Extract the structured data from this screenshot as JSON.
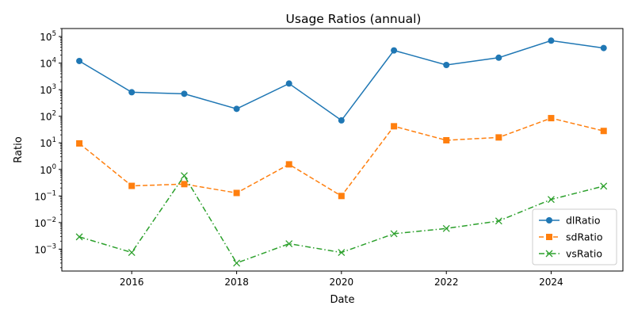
{
  "chart_data": {
    "type": "line",
    "title": "Usage Ratios (annual)",
    "xlabel": "Date",
    "ylabel": "Ratio",
    "y_scale": "log",
    "ylim": [
      0.00015,
      200000
    ],
    "xlim": [
      "2014-09-01",
      "2025-05-15"
    ],
    "x": [
      "2015-01-01",
      "2016-01-01",
      "2017-01-01",
      "2018-01-01",
      "2019-01-01",
      "2020-01-01",
      "2021-01-01",
      "2022-01-01",
      "2023-01-01",
      "2024-01-01",
      "2025-01-01"
    ],
    "x_tick_labels": [
      "2016",
      "2018",
      "2020",
      "2022",
      "2024"
    ],
    "y_tick_labels": [
      {
        "base": "10",
        "exp": "−3"
      },
      {
        "base": "10",
        "exp": "−2"
      },
      {
        "base": "10",
        "exp": "−1"
      },
      {
        "base": "10",
        "exp": "0"
      },
      {
        "base": "10",
        "exp": "1"
      },
      {
        "base": "10",
        "exp": "2"
      },
      {
        "base": "10",
        "exp": "3"
      },
      {
        "base": "10",
        "exp": "4"
      },
      {
        "base": "10",
        "exp": "5"
      }
    ],
    "grid": false,
    "legend_position": "bottom-right",
    "series": [
      {
        "name": "dlRatio",
        "color": "#1f77b4",
        "marker": "circle",
        "line_style": "solid",
        "values": [
          12000,
          800,
          700,
          190,
          1700,
          70,
          30000,
          8500,
          16000,
          70000,
          37000
        ]
      },
      {
        "name": "sdRatio",
        "color": "#ff7f0e",
        "marker": "square",
        "line_style": "dashed",
        "values": [
          9.5,
          0.24,
          0.28,
          0.13,
          1.55,
          0.1,
          42,
          12.5,
          16,
          85,
          28
        ]
      },
      {
        "name": "vsRatio",
        "color": "#2ca02c",
        "marker": "x",
        "line_style": "dashdot",
        "values": [
          0.0029,
          0.00075,
          0.58,
          0.0003,
          0.0016,
          0.00075,
          0.0038,
          0.006,
          0.0115,
          0.074,
          0.235
        ]
      }
    ]
  }
}
